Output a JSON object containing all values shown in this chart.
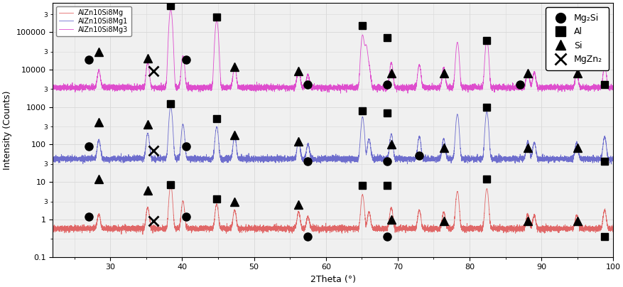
{
  "xlabel": "2Theta (°)",
  "ylabel": "Intensity (Counts)",
  "xlim": [
    22,
    100
  ],
  "ylim": [
    0.1,
    600000
  ],
  "series": [
    {
      "name": "AlZn10Si8Mg",
      "color": "#e06060"
    },
    {
      "name": "AlZn10Si8Mg1",
      "color": "#6666cc"
    },
    {
      "name": "AlZn10Si8Mg3",
      "color": "#dd44cc"
    }
  ],
  "phase_legend": [
    {
      "marker": "o",
      "label": "Mg₂Si"
    },
    {
      "marker": "s",
      "label": "Al"
    },
    {
      "marker": "^",
      "label": "Si"
    },
    {
      "marker": "x",
      "label": "MgZn₂"
    }
  ],
  "red_base": 0.55,
  "blue_base": 40.0,
  "pink_base": 3200.0,
  "red_peaks": [
    [
      28.4,
      0.8
    ],
    [
      35.2,
      1.5
    ],
    [
      38.4,
      8.0
    ],
    [
      40.1,
      2.5
    ],
    [
      44.8,
      2.0
    ],
    [
      47.3,
      1.2
    ],
    [
      56.2,
      1.0
    ],
    [
      57.5,
      0.6
    ],
    [
      65.1,
      4.0
    ],
    [
      66.0,
      1.0
    ],
    [
      69.1,
      1.5
    ],
    [
      73.0,
      1.2
    ],
    [
      76.4,
      1.0
    ],
    [
      78.3,
      5.0
    ],
    [
      82.4,
      6.0
    ],
    [
      88.1,
      0.8
    ],
    [
      89.0,
      0.7
    ],
    [
      94.9,
      0.7
    ],
    [
      98.8,
      1.2
    ]
  ],
  "blue_peaks": [
    [
      28.4,
      90
    ],
    [
      35.2,
      160
    ],
    [
      38.4,
      1000
    ],
    [
      40.1,
      300
    ],
    [
      44.8,
      250
    ],
    [
      47.3,
      120
    ],
    [
      56.2,
      80
    ],
    [
      57.5,
      60
    ],
    [
      65.1,
      500
    ],
    [
      66.0,
      100
    ],
    [
      69.1,
      150
    ],
    [
      73.0,
      120
    ],
    [
      76.4,
      100
    ],
    [
      78.3,
      600
    ],
    [
      82.4,
      700
    ],
    [
      88.1,
      80
    ],
    [
      89.0,
      70
    ],
    [
      94.9,
      70
    ],
    [
      98.8,
      120
    ]
  ],
  "pink_peaks": [
    [
      28.4,
      6000
    ],
    [
      35.2,
      12000
    ],
    [
      38.4,
      400000
    ],
    [
      40.1,
      20000
    ],
    [
      44.8,
      200000
    ],
    [
      47.3,
      9000
    ],
    [
      56.2,
      7000
    ],
    [
      57.5,
      4000
    ],
    [
      65.1,
      80000
    ],
    [
      65.6,
      40000
    ],
    [
      66.0,
      8000
    ],
    [
      69.1,
      12000
    ],
    [
      73.0,
      10000
    ],
    [
      76.4,
      8000
    ],
    [
      78.3,
      50000
    ],
    [
      82.4,
      60000
    ],
    [
      88.1,
      6000
    ],
    [
      89.0,
      5000
    ],
    [
      94.9,
      5000
    ],
    [
      98.8,
      9000
    ]
  ],
  "ann_red": {
    "circle": [
      [
        27.0,
        1.2
      ],
      [
        40.5,
        1.2
      ],
      [
        57.5,
        0.35
      ],
      [
        68.5,
        0.35
      ]
    ],
    "square": [
      [
        38.4,
        8.5
      ],
      [
        44.8,
        3.5
      ],
      [
        65.1,
        8.0
      ],
      [
        68.5,
        8.0
      ],
      [
        82.4,
        12.0
      ],
      [
        98.8,
        0.35
      ]
    ],
    "triangle": [
      [
        28.4,
        12.0
      ],
      [
        35.2,
        6.0
      ],
      [
        47.3,
        3.0
      ],
      [
        56.2,
        2.5
      ],
      [
        69.1,
        1.0
      ],
      [
        76.4,
        0.9
      ],
      [
        88.1,
        0.9
      ],
      [
        95.0,
        0.9
      ]
    ],
    "cross": [
      [
        36.0,
        0.9
      ]
    ]
  },
  "ann_blue": {
    "circle": [
      [
        27.0,
        90
      ],
      [
        40.5,
        90
      ],
      [
        57.5,
        35
      ],
      [
        68.5,
        35
      ],
      [
        73.0,
        50
      ]
    ],
    "square": [
      [
        38.4,
        1200
      ],
      [
        44.8,
        500
      ],
      [
        65.1,
        800
      ],
      [
        68.5,
        700
      ],
      [
        82.4,
        1000
      ],
      [
        98.8,
        35
      ]
    ],
    "triangle": [
      [
        28.4,
        400
      ],
      [
        35.2,
        350
      ],
      [
        47.3,
        180
      ],
      [
        56.2,
        120
      ],
      [
        69.1,
        100
      ],
      [
        76.4,
        80
      ],
      [
        88.1,
        80
      ],
      [
        95.0,
        80
      ]
    ],
    "cross": [
      [
        36.0,
        70
      ]
    ]
  },
  "ann_pink": {
    "circle": [
      [
        27.0,
        18000
      ],
      [
        40.5,
        18000
      ],
      [
        57.5,
        4000
      ],
      [
        68.5,
        4000
      ],
      [
        87.0,
        4000
      ]
    ],
    "square": [
      [
        38.4,
        500000
      ],
      [
        44.8,
        250000
      ],
      [
        65.1,
        150000
      ],
      [
        68.5,
        70000
      ],
      [
        82.4,
        60000
      ],
      [
        98.8,
        4000
      ]
    ],
    "triangle": [
      [
        28.4,
        30000
      ],
      [
        35.2,
        20000
      ],
      [
        47.3,
        12000
      ],
      [
        56.2,
        9000
      ],
      [
        69.1,
        8000
      ],
      [
        76.4,
        8000
      ],
      [
        88.1,
        8000
      ],
      [
        95.0,
        8000
      ]
    ],
    "cross": [
      [
        36.0,
        9000
      ]
    ]
  },
  "background_color": "#f0f0f0",
  "grid_color": "#d8d8d8"
}
